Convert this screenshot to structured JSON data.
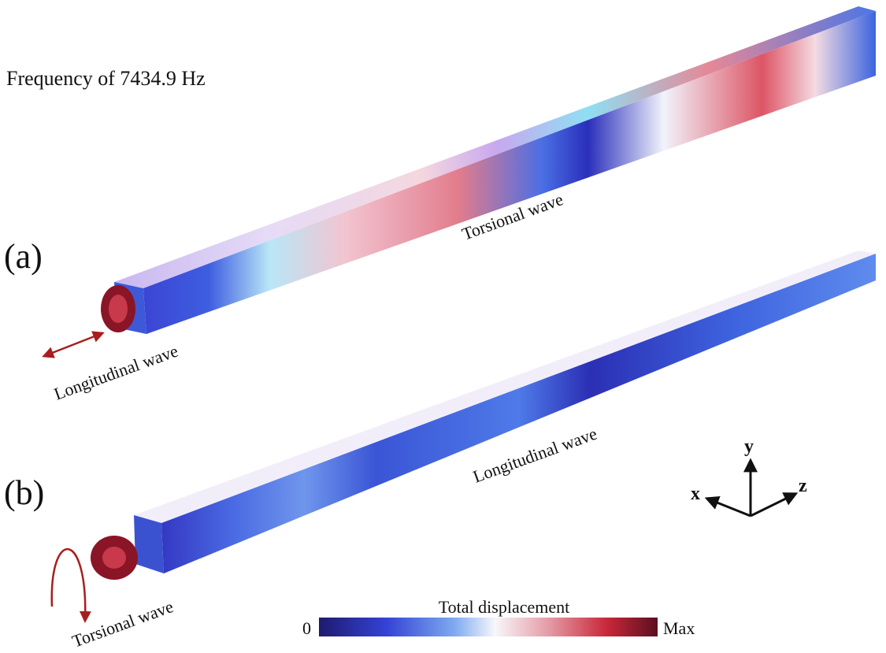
{
  "frequency_label": "Frequency of 7434.9 Hz",
  "panels": [
    {
      "label": "(a)",
      "excitation": "Longitudinal wave",
      "propagation": "Torsional wave"
    },
    {
      "label": "(b)",
      "excitation": "Torsional wave",
      "propagation": "Longitudinal wave"
    }
  ],
  "axes": {
    "x": "x",
    "y": "y",
    "z": "z"
  },
  "colorbar": {
    "title": "Total displacement",
    "min_label": "0",
    "max_label": "Max"
  }
}
